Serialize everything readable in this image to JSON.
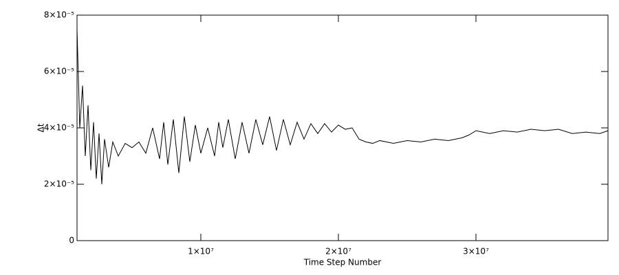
{
  "chart_data": {
    "type": "line",
    "x_label": "Time Step Number",
    "y_label": "Δt",
    "color": "#000000",
    "x": [
      1000000.0,
      1200000.0,
      1400000.0,
      1600000.0,
      1800000.0,
      2000000.0,
      2200000.0,
      2400000.0,
      2600000.0,
      2800000.0,
      3000000.0,
      3300000.0,
      3600000.0,
      4000000.0,
      4500000.0,
      5000000.0,
      5500000.0,
      6000000.0,
      6500000.0,
      7000000.0,
      7300000.0,
      7600000.0,
      8000000.0,
      8400000.0,
      8800000.0,
      9200000.0,
      9600000.0,
      10000000.0,
      10500000.0,
      11000000.0,
      11300000.0,
      11600000.0,
      12000000.0,
      12500000.0,
      13000000.0,
      13500000.0,
      14000000.0,
      14500000.0,
      15000000.0,
      15500000.0,
      16000000.0,
      16500000.0,
      17000000.0,
      17500000.0,
      18000000.0,
      18500000.0,
      19000000.0,
      19500000.0,
      20000000.0,
      20500000.0,
      21000000.0,
      21500000.0,
      22000000.0,
      22500000.0,
      23000000.0,
      24000000.0,
      25000000.0,
      26000000.0,
      27000000.0,
      28000000.0,
      29000000.0,
      29500000.0,
      30000000.0,
      31000000.0,
      32000000.0,
      33000000.0,
      34000000.0,
      35000000.0,
      36000000.0,
      37000000.0,
      38000000.0,
      39000000.0,
      39600000.0
    ],
    "values": [
      7.5e-05,
      4e-05,
      5.5e-05,
      3e-05,
      4.8e-05,
      2.5e-05,
      4.2e-05,
      2.2e-05,
      3.8e-05,
      2e-05,
      3.6e-05,
      2.6e-05,
      3.5e-05,
      3e-05,
      3.45e-05,
      3.3e-05,
      3.5e-05,
      3.1e-05,
      4e-05,
      2.9e-05,
      4.2e-05,
      2.7e-05,
      4.3e-05,
      2.4e-05,
      4.4e-05,
      2.8e-05,
      4.1e-05,
      3.1e-05,
      4e-05,
      3e-05,
      4.2e-05,
      3.3e-05,
      4.3e-05,
      2.9e-05,
      4.2e-05,
      3.1e-05,
      4.3e-05,
      3.4e-05,
      4.4e-05,
      3.2e-05,
      4.3e-05,
      3.4e-05,
      4.2e-05,
      3.6e-05,
      4.15e-05,
      3.8e-05,
      4.15e-05,
      3.85e-05,
      4.1e-05,
      3.95e-05,
      4e-05,
      3.6e-05,
      3.5e-05,
      3.45e-05,
      3.55e-05,
      3.45e-05,
      3.55e-05,
      3.5e-05,
      3.6e-05,
      3.55e-05,
      3.65e-05,
      3.75e-05,
      3.9e-05,
      3.8e-05,
      3.9e-05,
      3.85e-05,
      3.95e-05,
      3.9e-05,
      3.95e-05,
      3.8e-05,
      3.85e-05,
      3.8e-05,
      3.9e-05
    ],
    "xlim": [
      1000000.0,
      39600000.0
    ],
    "ylim": [
      0,
      8e-05
    ],
    "xticks": [
      {
        "value": 10000000.0,
        "label": "1×10⁷"
      },
      {
        "value": 20000000.0,
        "label": "2×10⁷"
      },
      {
        "value": 30000000.0,
        "label": "3×10⁷"
      }
    ],
    "yticks": [
      0,
      {
        "value": 2e-05,
        "label": "2×10⁻⁵"
      },
      {
        "value": 4e-05,
        "label": "4×10⁻⁵"
      },
      {
        "value": 6e-05,
        "label": "6×10⁻⁵"
      },
      {
        "value": 8e-05,
        "label": "8×10⁻⁵"
      }
    ]
  }
}
